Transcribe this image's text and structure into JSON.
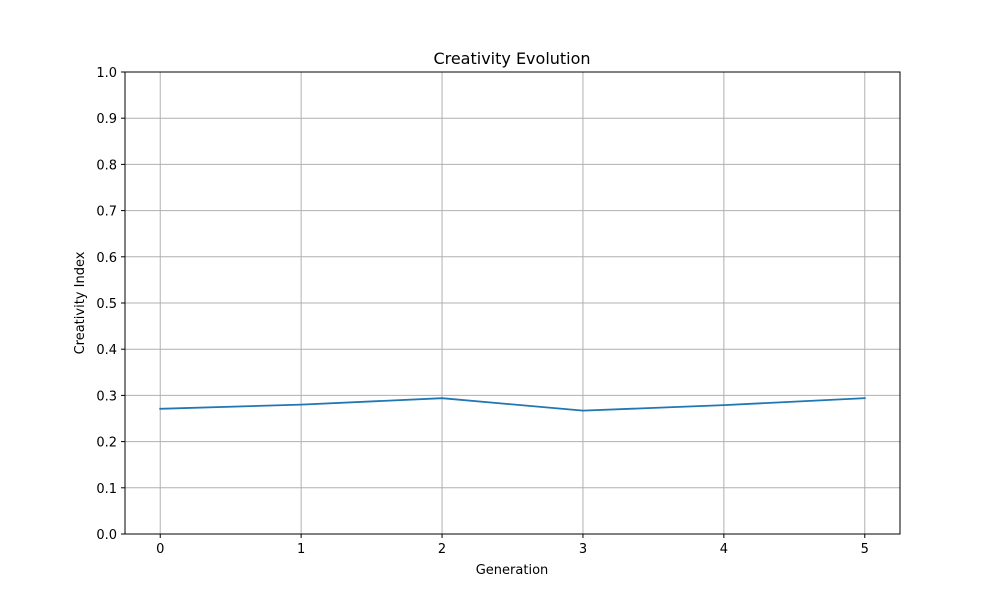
{
  "chart_data": {
    "type": "line",
    "title": "Creativity Evolution",
    "xlabel": "Generation",
    "ylabel": "Creativity Index",
    "x": [
      0,
      1,
      2,
      3,
      4,
      5
    ],
    "xlim": [
      -0.25,
      5.25
    ],
    "ylim": [
      0,
      1
    ],
    "xticks": [
      0,
      1,
      2,
      3,
      4,
      5
    ],
    "yticks": [
      0.0,
      0.1,
      0.2,
      0.3,
      0.4,
      0.5,
      0.6,
      0.7,
      0.8,
      0.9,
      1.0
    ],
    "ytick_labels": [
      "0.0",
      "0.1",
      "0.2",
      "0.3",
      "0.4",
      "0.5",
      "0.6",
      "0.7",
      "0.8",
      "0.9",
      "1.0"
    ],
    "grid": true,
    "series": [
      {
        "values": [
          0.271,
          0.28,
          0.294,
          0.267,
          0.279,
          0.294
        ],
        "color": "#1f77b4"
      }
    ]
  }
}
